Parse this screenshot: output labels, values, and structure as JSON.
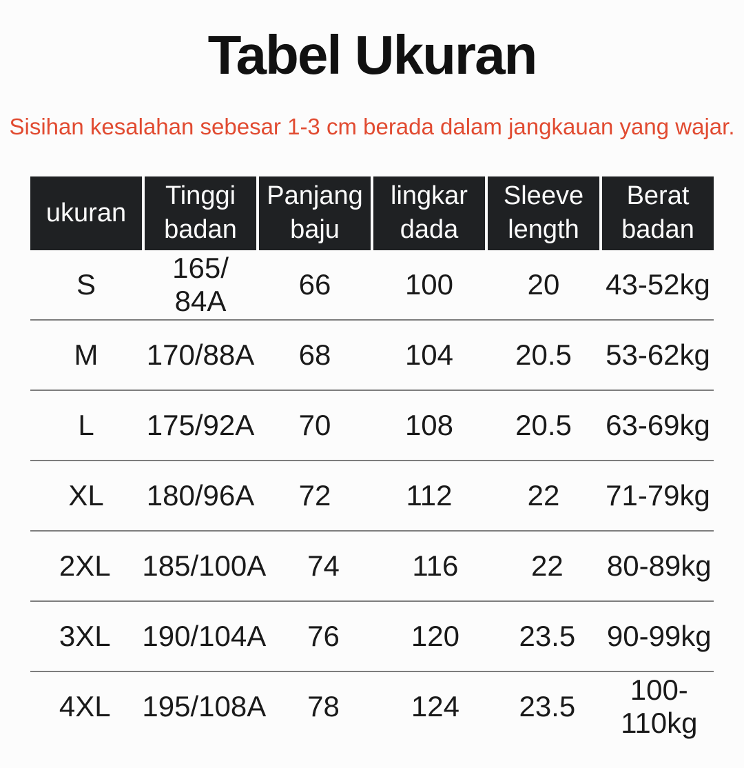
{
  "title": "Tabel Ukuran",
  "subtitle": "Sisihan kesalahan sebesar 1-3 cm berada dalam jangkauan yang wajar.",
  "colors": {
    "background": "#fcfcfc",
    "title_text": "#111111",
    "subtitle_text": "#e14b31",
    "header_bg": "#1f2123",
    "header_text": "#fafafa",
    "body_text": "#1a1a1a",
    "row_divider": "#7d7d7d"
  },
  "table": {
    "header_lines": [
      "ukuran",
      "Tinggi\nbadan",
      "Panjang\nbaju",
      "lingkar\ndada",
      "Sleeve\nlength",
      "Berat\nbadan"
    ]
  },
  "chart_data": {
    "type": "table",
    "title": "Tabel Ukuran",
    "note": "Sisihan kesalahan sebesar 1-3 cm berada dalam jangkauan yang wajar.",
    "columns": [
      "ukuran",
      "Tinggi badan",
      "Panjang baju",
      "lingkar dada",
      "Sleeve length",
      "Berat badan"
    ],
    "rows": [
      [
        "S",
        "165/ 84A",
        "66",
        "100",
        "20",
        "43-52kg"
      ],
      [
        "M",
        "170/88A",
        "68",
        "104",
        "20.5",
        "53-62kg"
      ],
      [
        "L",
        "175/92A",
        "70",
        "108",
        "20.5",
        "63-69kg"
      ],
      [
        "XL",
        "180/96A",
        "72",
        "112",
        "22",
        "71-79kg"
      ],
      [
        "2XL",
        "185/100A",
        "74",
        "116",
        "22",
        "80-89kg"
      ],
      [
        "3XL",
        "190/104A",
        "76",
        "120",
        "23.5",
        "90-99kg"
      ],
      [
        "4XL",
        "195/108A",
        "78",
        "124",
        "23.5",
        "100-110kg"
      ]
    ]
  }
}
